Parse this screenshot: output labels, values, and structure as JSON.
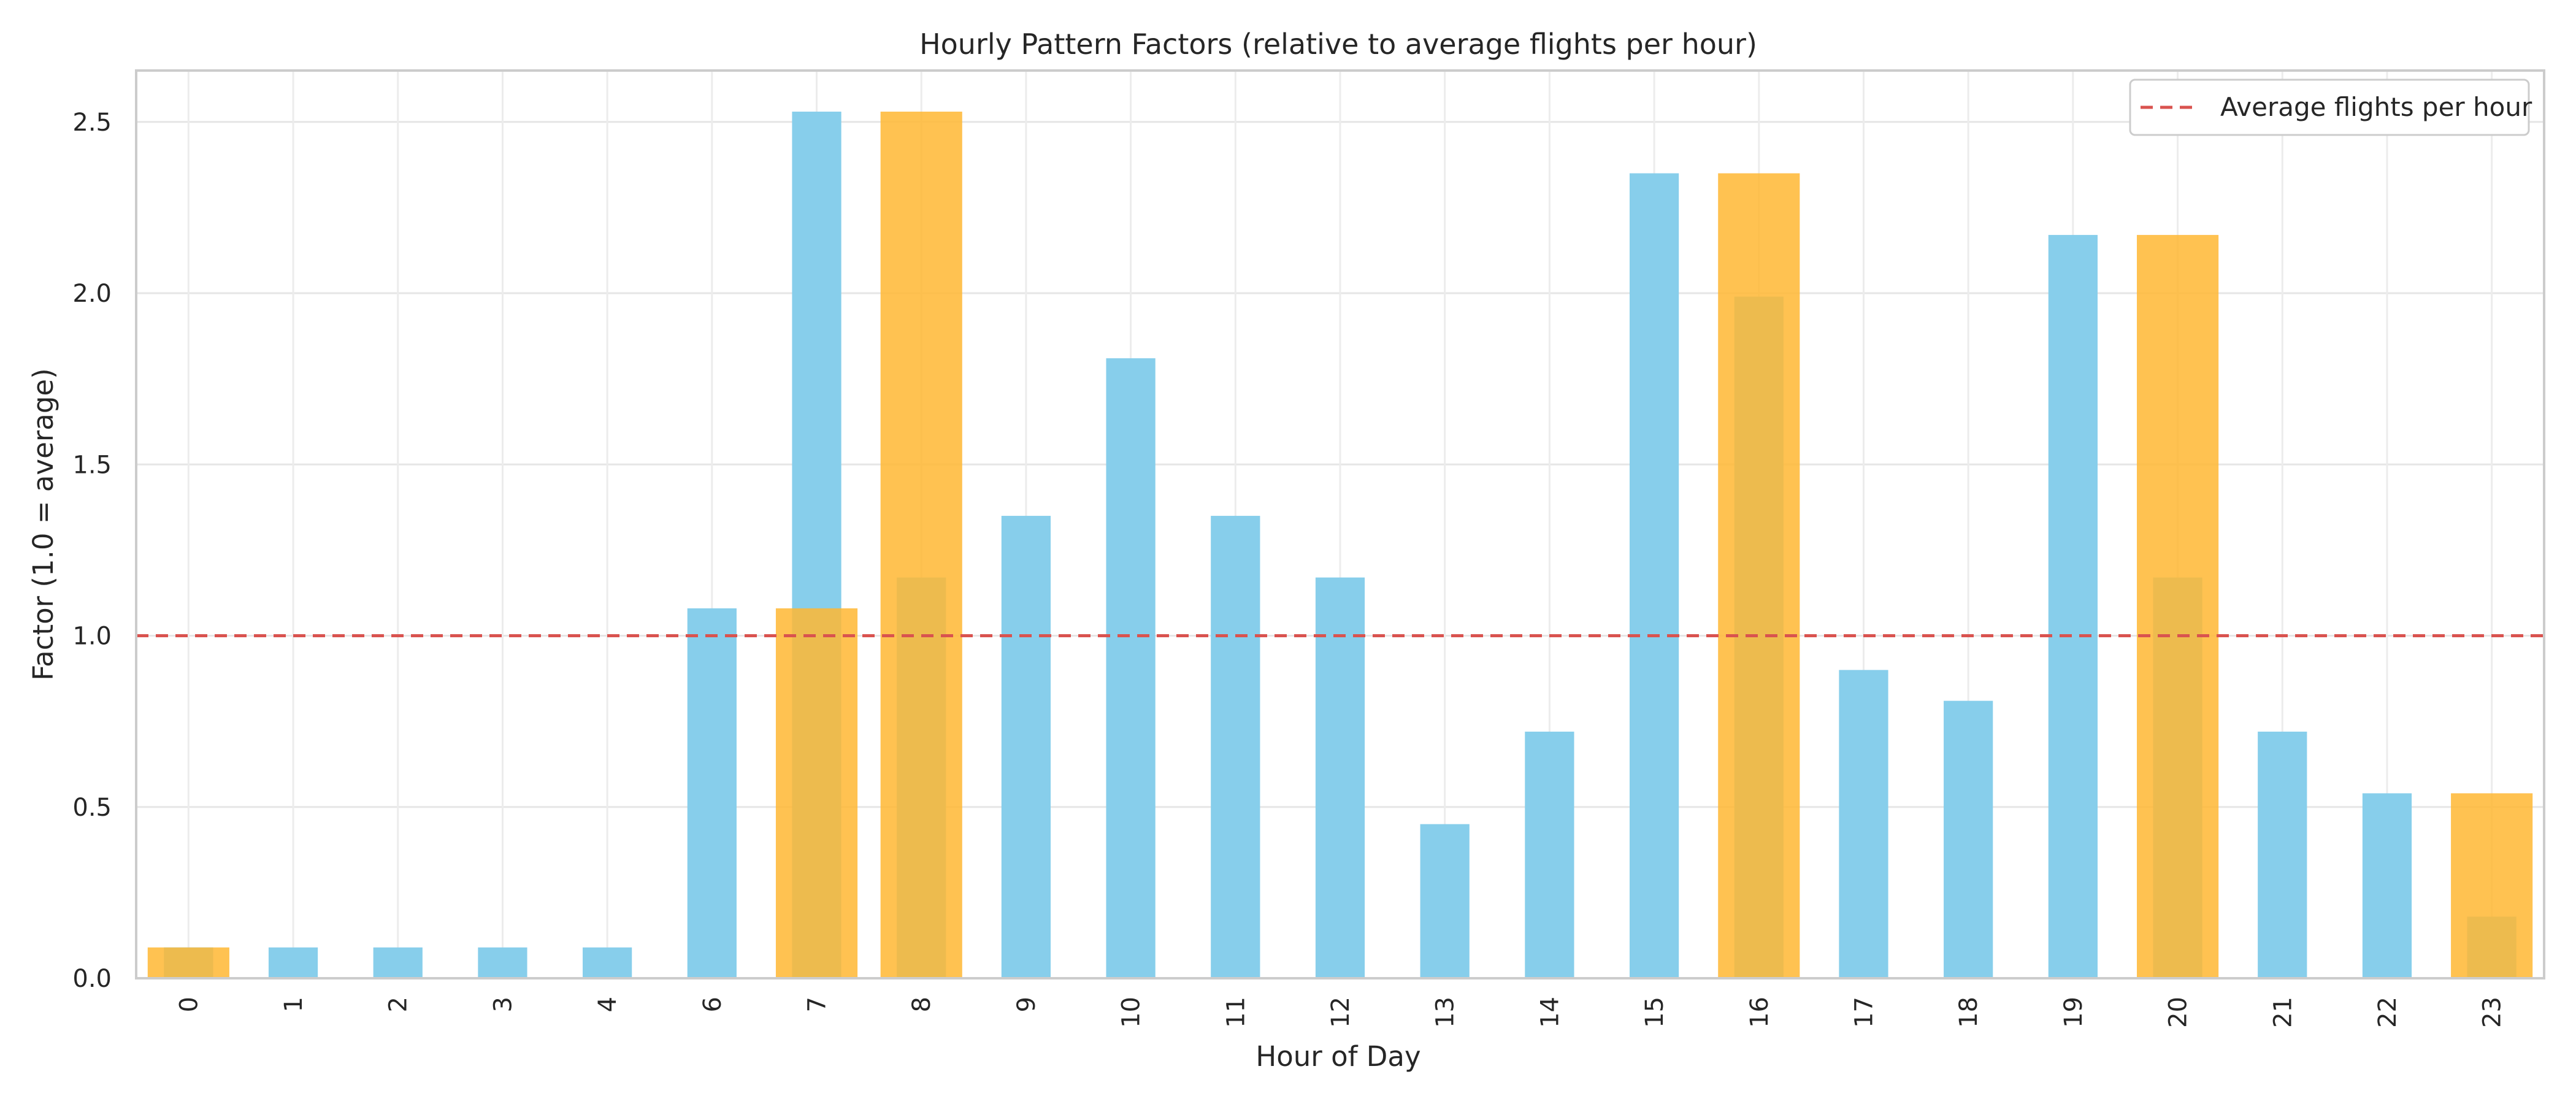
{
  "chart_data": {
    "type": "bar",
    "title": "Hourly Pattern Factors (relative to average flights per hour)",
    "xlabel": "Hour of Day",
    "ylabel": "Factor (1.0 = average)",
    "categories": [
      "0",
      "1",
      "2",
      "3",
      "4",
      "6",
      "7",
      "8",
      "9",
      "10",
      "11",
      "12",
      "13",
      "14",
      "15",
      "16",
      "17",
      "18",
      "19",
      "20",
      "21",
      "22",
      "23"
    ],
    "ylim": [
      0,
      2.65
    ],
    "yticks": [
      "0.0",
      "0.5",
      "1.0",
      "1.5",
      "2.0",
      "2.5"
    ],
    "ytick_values": [
      0,
      0.5,
      1.0,
      1.5,
      2.0,
      2.5
    ],
    "grid": true,
    "legend_position": "top-right",
    "series": [
      {
        "color": "#87CEEB",
        "values": [
          0.09,
          0.09,
          0.09,
          0.09,
          0.09,
          1.08,
          2.53,
          1.17,
          1.35,
          1.81,
          1.35,
          1.17,
          0.45,
          0.72,
          2.35,
          1.99,
          0.9,
          0.81,
          2.17,
          1.17,
          0.72,
          0.54,
          0.18
        ]
      },
      {
        "color": "#FFB733",
        "values": [
          0.09,
          0,
          0,
          0,
          0,
          0,
          1.08,
          2.53,
          0,
          0,
          0,
          0,
          0,
          0,
          0,
          2.35,
          0,
          0,
          0,
          2.17,
          0,
          0,
          0.54
        ]
      }
    ],
    "reference_line": {
      "y": 1.0,
      "label": "Average flights per hour",
      "color": "#D9534F"
    }
  }
}
